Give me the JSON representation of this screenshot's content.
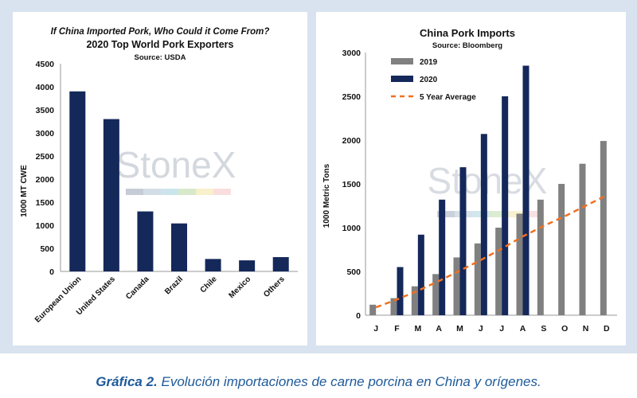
{
  "caption": {
    "label": "Gráfica 2.",
    "text": " Evolución importaciones de carne porcina en China y orígenes."
  },
  "chart_data": [
    {
      "type": "bar",
      "title_italic": "If China Imported Pork, Who Could it Come From?",
      "title": "2020 Top World Pork Exporters",
      "subtitle": "Source: USDA",
      "ylabel": "1000 MT CWE",
      "ylim": [
        0,
        4500
      ],
      "yticks": [
        0,
        500,
        1000,
        1500,
        2000,
        2500,
        3000,
        3500,
        4000,
        4500
      ],
      "categories": [
        "European Union",
        "United States",
        "Canada",
        "Brazil",
        "Chile",
        "Mexico",
        "Others"
      ],
      "values": [
        3900,
        3300,
        1300,
        1040,
        270,
        240,
        310
      ],
      "color": "#14285a",
      "watermark": "StoneX"
    },
    {
      "type": "bar",
      "title": "China Pork Imports",
      "subtitle": "Source: Bloomberg",
      "ylabel": "1000 Metric Tons",
      "ylim": [
        0,
        3000
      ],
      "yticks": [
        0,
        500,
        1000,
        1500,
        2000,
        2500,
        3000
      ],
      "categories": [
        "J",
        "F",
        "M",
        "A",
        "M",
        "J",
        "J",
        "A",
        "S",
        "O",
        "N",
        "D"
      ],
      "series": [
        {
          "name": "2019",
          "color": "#808080",
          "values": [
            120,
            195,
            330,
            470,
            660,
            820,
            1000,
            1160,
            1320,
            1500,
            1730,
            1990
          ]
        },
        {
          "name": "2020",
          "color": "#14285a",
          "values": [
            null,
            550,
            920,
            1320,
            1690,
            2070,
            2500,
            2850,
            null,
            null,
            null,
            null
          ]
        }
      ],
      "line": {
        "name": "5 Year Average",
        "color": "#f07020",
        "dashed": true,
        "values": [
          90,
          180,
          280,
          390,
          510,
          630,
          760,
          900,
          1020,
          1130,
          1250,
          1370
        ]
      },
      "legend_position": "top-left",
      "watermark": "StoneX"
    }
  ]
}
